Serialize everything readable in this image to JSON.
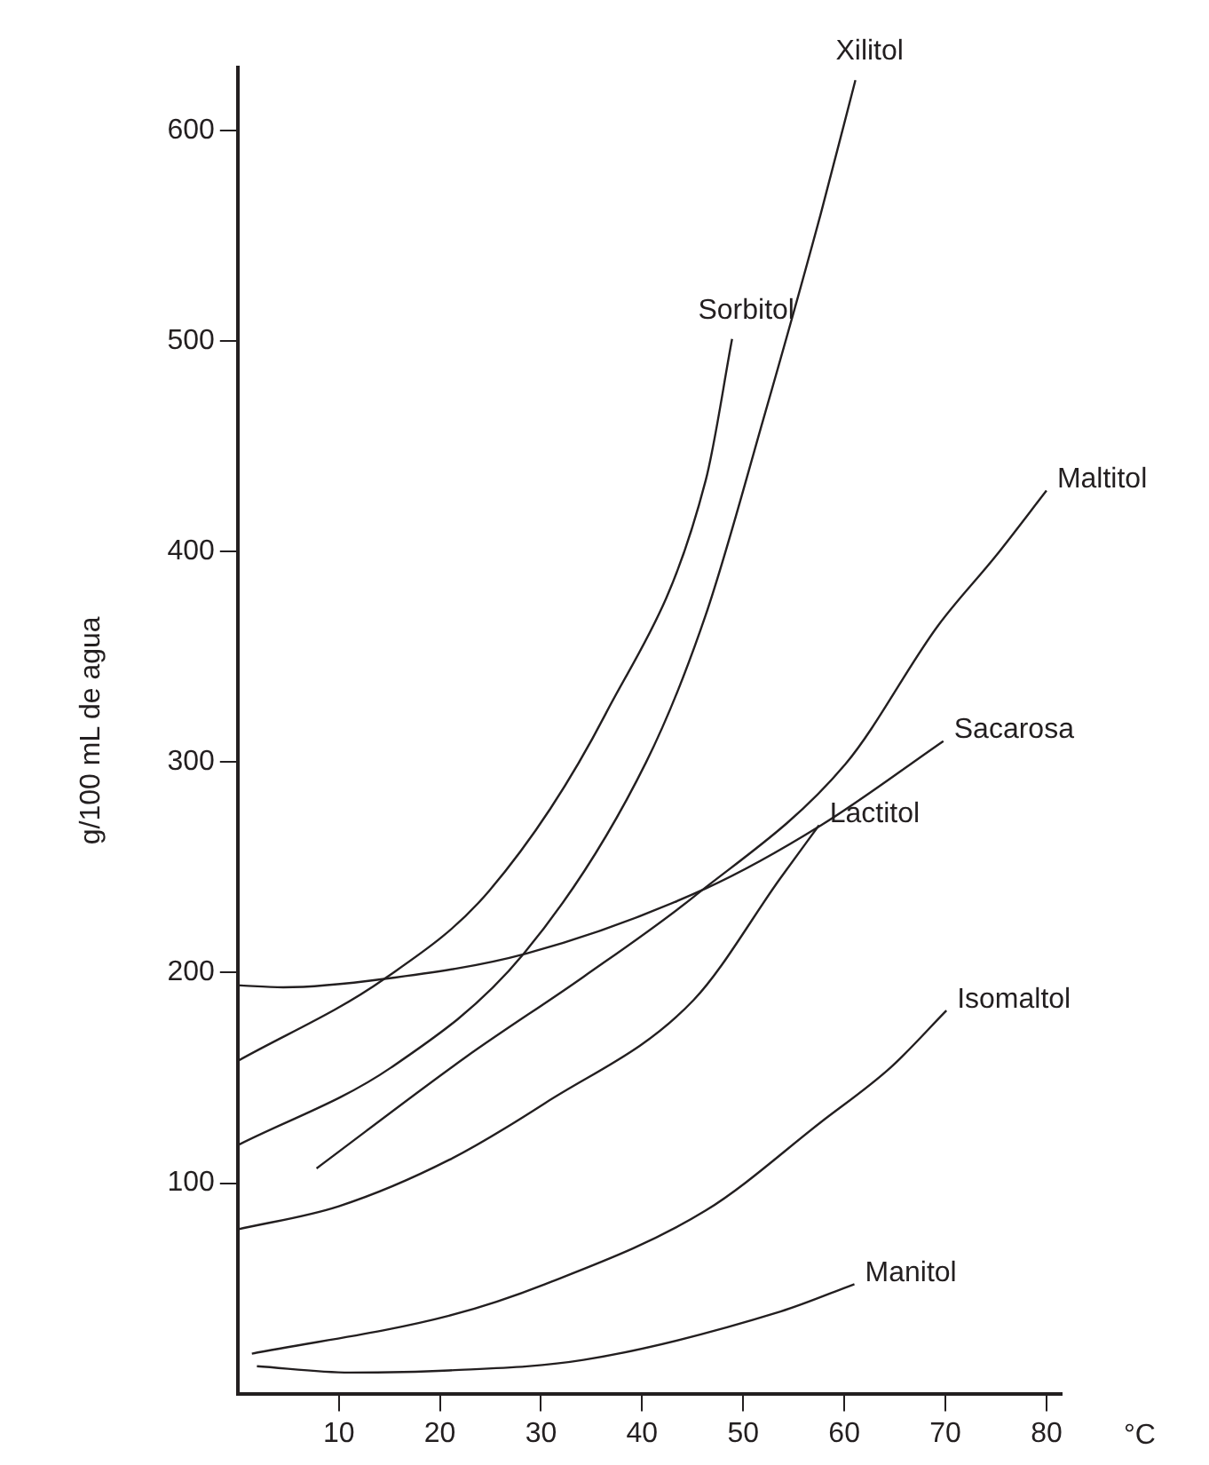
{
  "chart_data": {
    "type": "line",
    "xlabel": "°C",
    "ylabel": "g/100 mL de agua",
    "xlim": [
      0,
      81.5
    ],
    "ylim": [
      0,
      630
    ],
    "xticks": [
      10,
      20,
      30,
      40,
      50,
      60,
      70,
      80
    ],
    "yticks": [
      100,
      200,
      300,
      400,
      500,
      600
    ],
    "grid": false,
    "legend": false,
    "marker": "none",
    "line_style": "solid",
    "series": [
      {
        "name": "Xilitol",
        "color": "#231f20",
        "x": [
          0,
          15.2,
          28.3,
          40.4,
          46.3,
          52,
          57.7,
          61.1
        ],
        "values": [
          118,
          155,
          209,
          300,
          370,
          463,
          561,
          624
        ]
      },
      {
        "name": "Sorbitol",
        "color": "#231f20",
        "x": [
          0,
          14.5,
          24.9,
          36.4,
          46.3,
          48.9
        ],
        "values": [
          158,
          197,
          239,
          323,
          434,
          501
        ]
      },
      {
        "name": "Maltitol",
        "color": "#231f20",
        "x": [
          7.8,
          22.6,
          34.2,
          45.1,
          60.1,
          69.3,
          75,
          80
        ],
        "values": [
          107,
          160,
          198,
          236,
          299,
          365,
          398,
          429
        ]
      },
      {
        "name": "Sacarosa",
        "color": "#231f20",
        "x": [
          0,
          4.5,
          14.5,
          28.5,
          46.3,
          57.7,
          69.8
        ],
        "values": [
          194,
          193,
          197,
          209,
          240,
          270,
          310
        ]
      },
      {
        "name": "Lactitol",
        "color": "#231f20",
        "x": [
          0,
          10,
          20.9,
          30.4,
          45.1,
          53.7,
          57.5
        ],
        "values": [
          78,
          89,
          111,
          138,
          187,
          245,
          270
        ]
      },
      {
        "name": "Isomaltol",
        "color": "#231f20",
        "x": [
          1.4,
          20.9,
          30.4,
          46.3,
          57.7,
          64.6,
          70.1
        ],
        "values": [
          19,
          37,
          52,
          87,
          129,
          155,
          182
        ]
      },
      {
        "name": "Manitol",
        "color": "#231f20",
        "x": [
          1.9,
          11.1,
          20.9,
          34.2,
          53.7,
          61
        ],
        "values": [
          13,
          10,
          11,
          16,
          39,
          52
        ]
      }
    ]
  }
}
